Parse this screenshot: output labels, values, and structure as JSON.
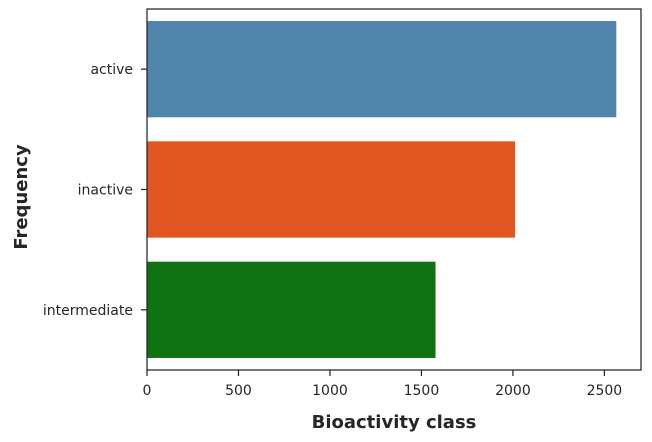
{
  "chart_data": {
    "type": "bar",
    "orientation": "horizontal",
    "categories": [
      "active",
      "inactive",
      "intermediate"
    ],
    "values": [
      2565,
      2012,
      1577
    ],
    "colors": [
      "#5184ab",
      "#e05520",
      "#0f7213"
    ],
    "xlabel": "Bioactivity class",
    "ylabel": "Frequency",
    "xlim": [
      0,
      2700
    ],
    "xticks": [
      0,
      500,
      1000,
      1500,
      2000,
      2500
    ],
    "grid": false,
    "legend": "none"
  }
}
